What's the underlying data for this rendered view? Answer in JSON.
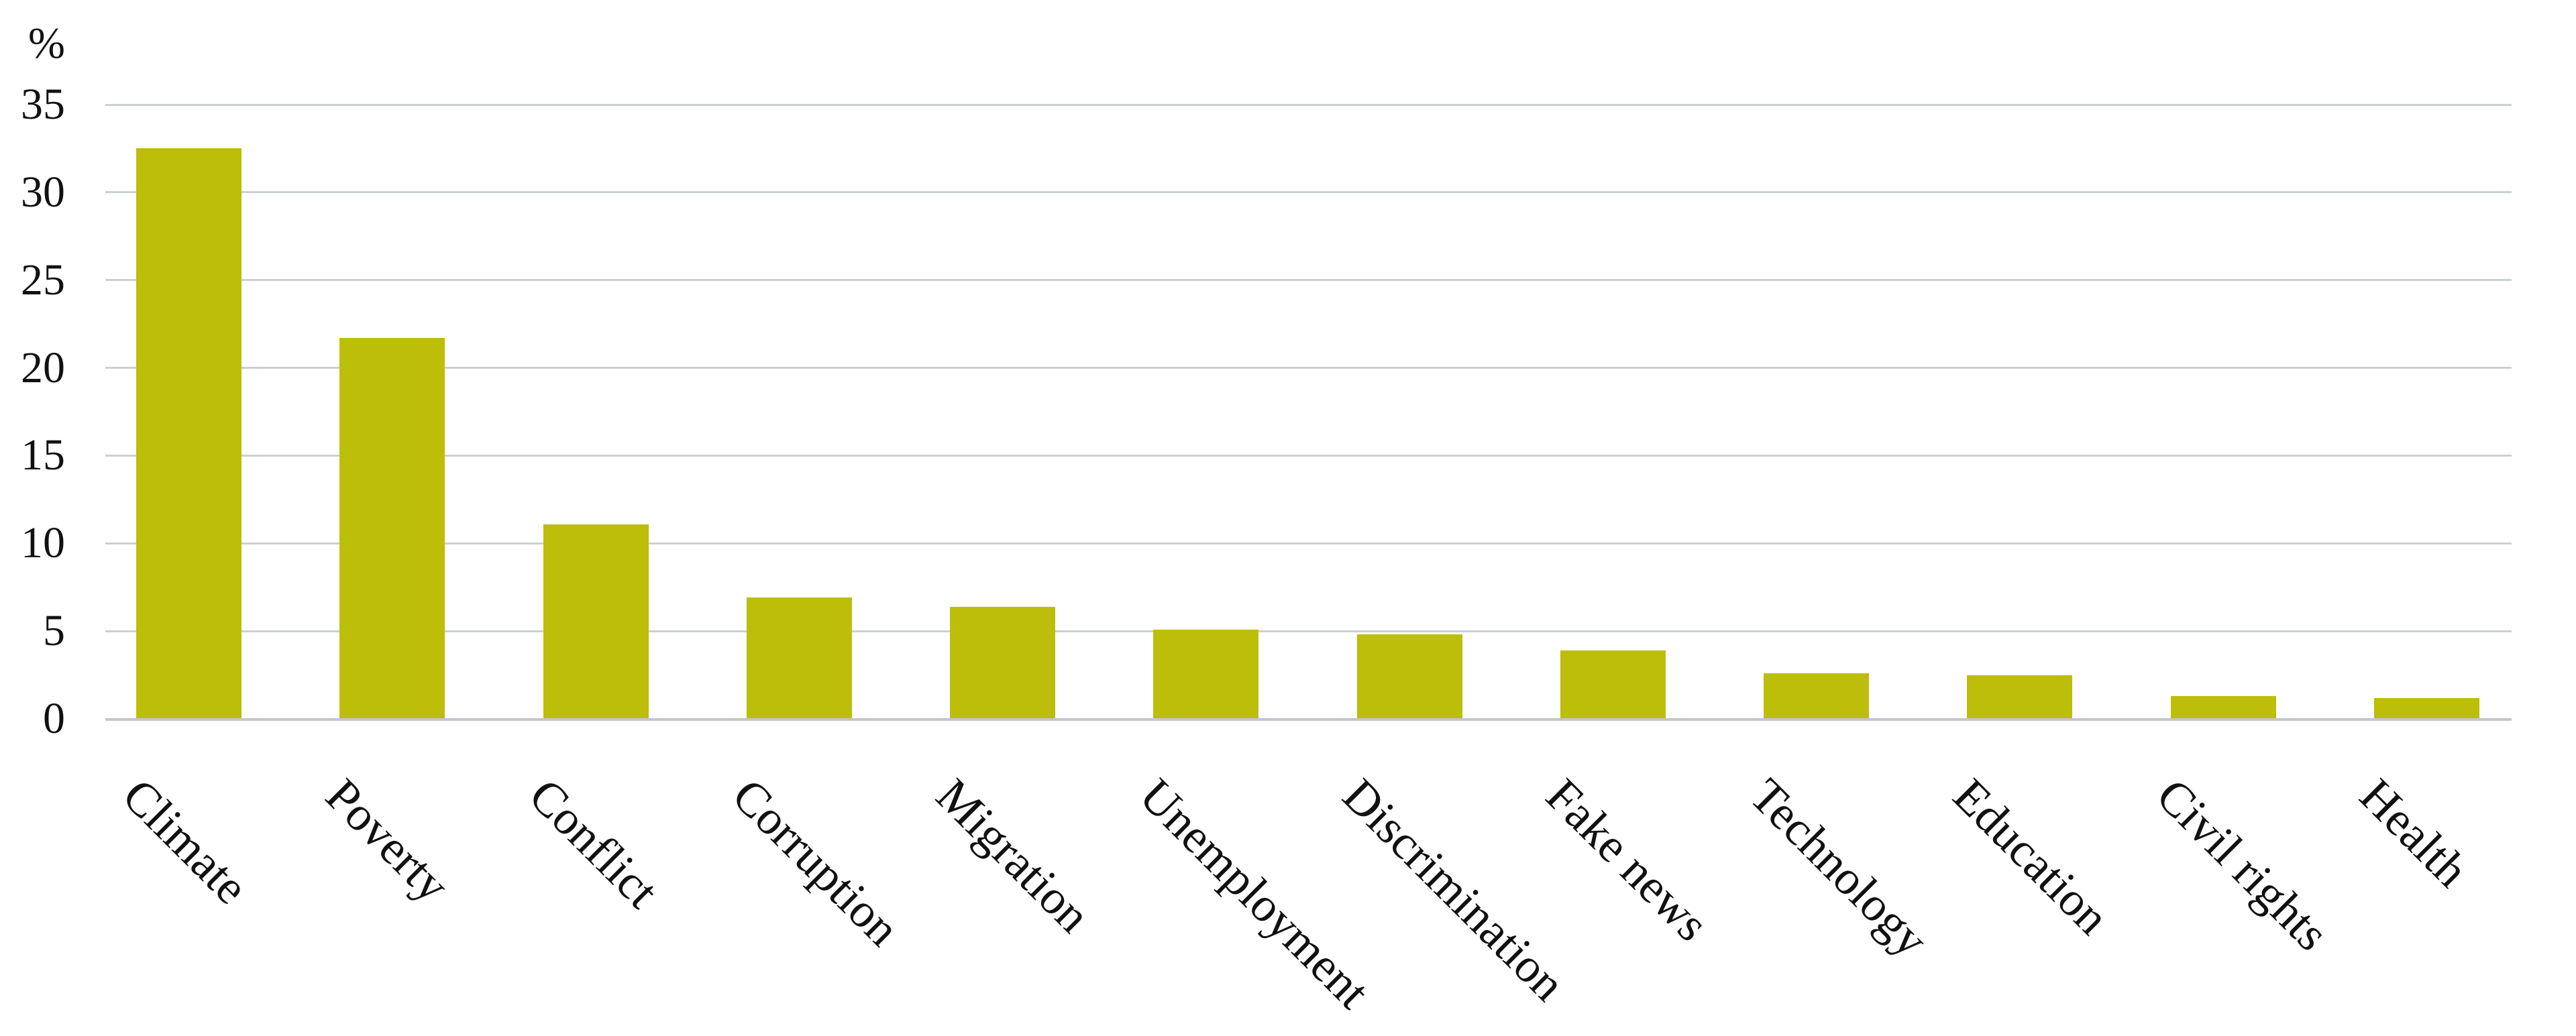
{
  "chart_data": {
    "type": "bar",
    "title": "",
    "xlabel": "",
    "ylabel": "%",
    "categories": [
      "Climate",
      "Poverty",
      "Conflict",
      "Corruption",
      "Migration",
      "Unemployment",
      "Discrimination",
      "Fake news",
      "Technology",
      "Education",
      "Civil rights",
      "Health"
    ],
    "values": [
      32.5,
      21.7,
      11.1,
      6.9,
      6.4,
      5.1,
      4.8,
      3.9,
      2.6,
      2.5,
      1.3,
      1.2
    ],
    "yticks": [
      0,
      5,
      10,
      15,
      20,
      25,
      30,
      35
    ],
    "ylim": [
      0,
      35
    ],
    "grid": true,
    "legend_position": "none",
    "bar_color": "#BCBE09",
    "gridline_color": "#CBD0D3",
    "axis_line_color": "#C2C7CA",
    "text_color": "#111111"
  }
}
